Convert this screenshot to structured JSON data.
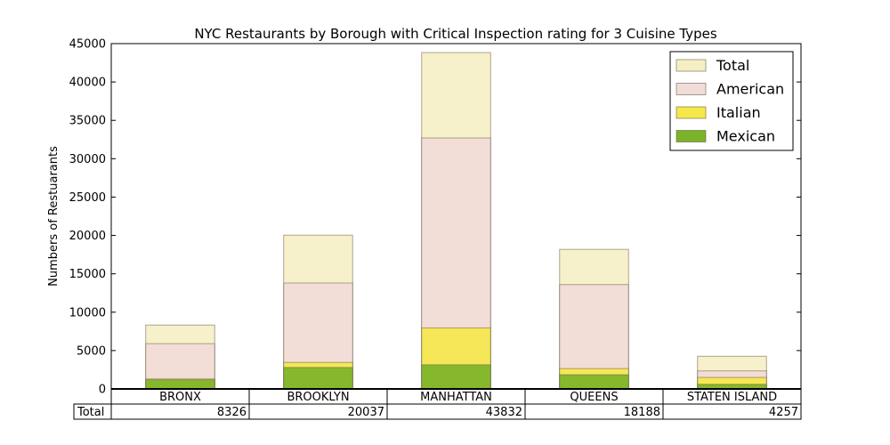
{
  "chart_data": {
    "type": "bar",
    "title": "NYC Restaurants by Borough with Critical Inspection rating for 3 Cuisine Types",
    "xlabel": "",
    "ylabel": "Numbers of Restuarants",
    "ylim": [
      0,
      45000
    ],
    "yticks": [
      "0",
      "5000",
      "10000",
      "15000",
      "20000",
      "25000",
      "30000",
      "35000",
      "40000",
      "45000"
    ],
    "categories": [
      "BRONX",
      "BROOKLYN",
      "MANHATTAN",
      "QUEENS",
      "STATEN ISLAND"
    ],
    "series": [
      {
        "name": "Total",
        "values": [
          8326,
          20037,
          43832,
          18188,
          4257
        ],
        "color": "#f5f0c4"
      },
      {
        "name": "American",
        "values": [
          5900,
          13800,
          32700,
          13600,
          2350
        ],
        "color": "#f2dcd8"
      },
      {
        "name": "Italian",
        "values": [
          1300,
          3450,
          7950,
          2650,
          1500
        ],
        "color": "#f5e84a"
      },
      {
        "name": "Mexican",
        "values": [
          1200,
          2800,
          3150,
          1850,
          600
        ],
        "color": "#7ab32a"
      }
    ],
    "legend_position": "top-right",
    "table": {
      "row_label": "Total",
      "values": [
        "8326",
        "20037",
        "43832",
        "18188",
        "4257"
      ]
    }
  }
}
